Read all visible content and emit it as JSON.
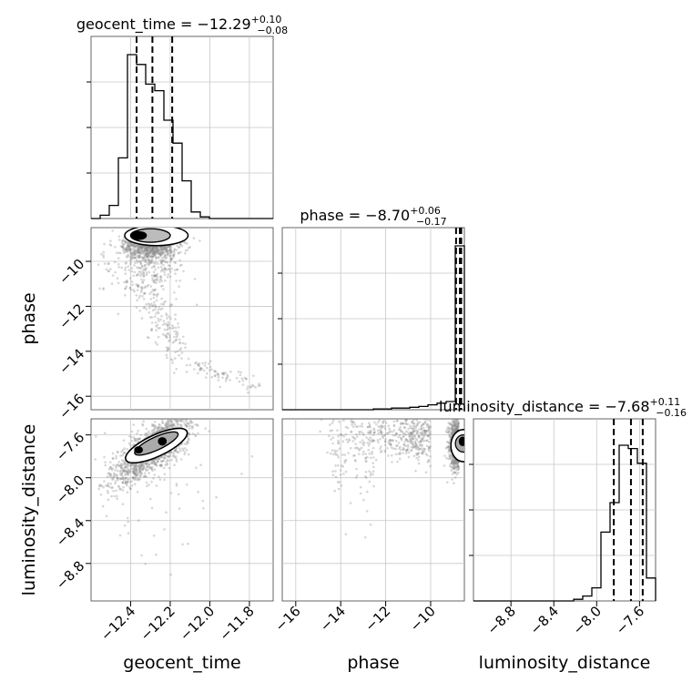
{
  "chart_data": {
    "type": "corner",
    "parameters": [
      "geocent_time",
      "phase",
      "luminosity_distance"
    ],
    "axis_labels": {
      "x": [
        "geocent_time",
        "phase",
        "luminosity_distance"
      ],
      "y": [
        "phase",
        "luminosity_distance"
      ]
    },
    "titles": [
      {
        "param": "geocent_time",
        "prefix": "geocent_time = ",
        "median": "−12.29",
        "plus": "+0.10",
        "minus": "−0.08"
      },
      {
        "param": "phase",
        "prefix": "phase = ",
        "median": "−8.70",
        "plus": "+0.06",
        "minus": "−0.17"
      },
      {
        "param": "luminosity_distance",
        "prefix": "luminosity_distance = ",
        "median": "−7.68",
        "plus": "+0.11",
        "minus": "−0.16"
      }
    ],
    "ranges": {
      "geocent_time": [
        -12.6,
        -11.68
      ],
      "phase": [
        -16.6,
        -8.5
      ],
      "luminosity_distance": [
        -9.15,
        -7.45
      ]
    },
    "ticks": {
      "geocent_time": [
        -12.4,
        -12.2,
        -12.0,
        -11.8
      ],
      "phase": [
        -16,
        -14,
        -12,
        -10
      ],
      "luminosity_distance": [
        -8.8,
        -8.4,
        -8.0,
        -7.6
      ]
    },
    "tick_labels": {
      "geocent_time": [
        "−12.4",
        "−12.2",
        "−12.0",
        "−11.8"
      ],
      "phase": [
        "−16",
        "−14",
        "−12",
        "−10"
      ],
      "luminosity_distance": [
        "−8.8",
        "−8.4",
        "−8.0",
        "−7.6"
      ]
    },
    "quantiles": {
      "geocent_time": [
        -12.37,
        -12.29,
        -12.19
      ],
      "phase": [
        -8.87,
        -8.7,
        -8.64
      ],
      "luminosity_distance": [
        -7.84,
        -7.68,
        -7.57
      ]
    },
    "histograms": {
      "geocent_time": {
        "edges": [
          -12.6,
          -12.554,
          -12.508,
          -12.462,
          -12.416,
          -12.37,
          -12.324,
          -12.278,
          -12.232,
          -12.186,
          -12.14,
          -12.094,
          -12.048,
          -12.002,
          -11.956,
          -11.91,
          -11.864,
          -11.818,
          -11.772,
          -11.726,
          -11.68
        ],
        "counts": [
          0,
          0.02,
          0.08,
          0.37,
          1.0,
          0.94,
          0.82,
          0.78,
          0.6,
          0.46,
          0.23,
          0.04,
          0.01,
          0,
          0,
          0,
          0,
          0,
          0,
          0
        ]
      },
      "phase": {
        "edges": [
          -16.6,
          -16.195,
          -15.79,
          -15.385,
          -14.98,
          -14.575,
          -14.17,
          -13.765,
          -13.36,
          -12.955,
          -12.55,
          -12.145,
          -11.74,
          -11.335,
          -10.93,
          -10.525,
          -10.12,
          -9.715,
          -9.31,
          -8.905,
          -8.5
        ],
        "counts": [
          0,
          0,
          0,
          0,
          0,
          0,
          0,
          0,
          0,
          0,
          0.005,
          0.005,
          0.01,
          0.01,
          0.015,
          0.02,
          0.03,
          0.04,
          0.05,
          1.0
        ]
      },
      "luminosity_distance": {
        "edges": [
          -9.15,
          -9.065,
          -8.98,
          -8.895,
          -8.81,
          -8.725,
          -8.64,
          -8.555,
          -8.47,
          -8.385,
          -8.3,
          -8.215,
          -8.13,
          -8.045,
          -7.96,
          -7.875,
          -7.79,
          -7.705,
          -7.62,
          -7.535,
          -7.45
        ],
        "counts": [
          0,
          0,
          0,
          0,
          0,
          0,
          0,
          0,
          0,
          0,
          0,
          0.01,
          0.03,
          0.08,
          0.42,
          0.6,
          0.95,
          0.93,
          0.84,
          0.14,
          0.0
        ]
      }
    },
    "grid": true,
    "colors": {
      "line": "#000000",
      "points": "#8c8c8c",
      "grid": "#c8c8c8",
      "frame": "#555555"
    }
  }
}
